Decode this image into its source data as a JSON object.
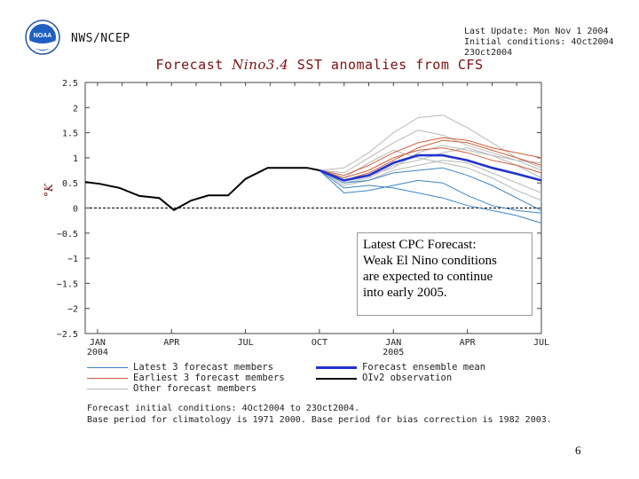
{
  "header": {
    "agency": "NWS/NCEP",
    "logo_text": "NOAA",
    "last_update": "Last Update: Mon Nov 1 2004",
    "initial_conditions": "Initial conditions: 4Oct2004 23Oct2004"
  },
  "callout": {
    "lines": [
      "Latest CPC Forecast:",
      "Weak El Nino conditions",
      "are expected to continue",
      "into early 2005."
    ]
  },
  "legend": {
    "latest": "Latest 3 forecast members",
    "earliest": "Earliest 3 forecast members",
    "other": "Other forecast members",
    "mean": "Forecast ensemble mean",
    "obs": "OIv2 observation"
  },
  "footer": {
    "line1": "Forecast initial conditions: 4Oct2004 to 23Oct2004.",
    "line2": "Base period for climatology is 1971 2000. Base period for bias correction is 1982 2003."
  },
  "slide_number": "6",
  "colors": {
    "latest": "#3b86c8",
    "earliest": "#d0603a",
    "other": "#b8b8b8",
    "mean": "#2233cc",
    "obs": "#000000",
    "title": "#7a1010"
  },
  "chart_data": {
    "type": "line",
    "title_prefix": "Forecast ",
    "title_italic": "Nino3.4",
    "title_suffix": " SST anomalies from CFS",
    "ylabel": "°K",
    "ylim": [
      -2.5,
      2.5
    ],
    "yticks": [
      -2.5,
      -2,
      -1.5,
      -1,
      -0.5,
      0,
      0.5,
      1,
      1.5,
      2,
      2.5
    ],
    "ytick_labels": [
      "−2.5",
      "−2",
      "−1.5",
      "−1",
      "−0.5",
      "0",
      "0.5",
      "1",
      "1.5",
      "2",
      "2.5"
    ],
    "xlim": [
      0,
      18.5
    ],
    "xticks": [
      {
        "x": 0.5,
        "label": "JAN",
        "sub": "2004"
      },
      {
        "x": 3.5,
        "label": "APR",
        "sub": ""
      },
      {
        "x": 6.5,
        "label": "JUL",
        "sub": ""
      },
      {
        "x": 9.5,
        "label": "OCT",
        "sub": ""
      },
      {
        "x": 12.5,
        "label": "JAN",
        "sub": "2005"
      },
      {
        "x": 15.5,
        "label": "APR",
        "sub": ""
      },
      {
        "x": 18.5,
        "label": "JUL",
        "sub": ""
      }
    ],
    "observation": {
      "x": [
        0,
        0.6,
        1.4,
        2.2,
        3.0,
        3.6,
        4.3,
        5.0,
        5.8,
        6.5,
        7.4,
        8.2,
        9.0,
        9.5
      ],
      "y": [
        0.52,
        0.48,
        0.4,
        0.24,
        0.2,
        -0.04,
        0.15,
        0.25,
        0.25,
        0.58,
        0.8,
        0.8,
        0.8,
        0.75
      ]
    },
    "ensemble_mean": {
      "x": [
        9.5,
        10.5,
        11.5,
        12.5,
        13.5,
        14.5,
        15.5,
        16.5,
        17.5,
        18.5
      ],
      "y": [
        0.75,
        0.55,
        0.65,
        0.9,
        1.05,
        1.05,
        0.95,
        0.8,
        0.68,
        0.55
      ]
    },
    "latest_members": [
      {
        "x": [
          9.5,
          10.5,
          11.5,
          12.5,
          13.5,
          14.5,
          15.5,
          16.5,
          17.5,
          18.5
        ],
        "y": [
          0.75,
          0.3,
          0.35,
          0.45,
          0.55,
          0.5,
          0.25,
          0.05,
          -0.05,
          -0.1
        ]
      },
      {
        "x": [
          9.5,
          10.5,
          11.5,
          12.5,
          13.5,
          14.5,
          15.5,
          16.5,
          17.5,
          18.5
        ],
        "y": [
          0.75,
          0.4,
          0.45,
          0.4,
          0.3,
          0.2,
          0.05,
          -0.05,
          -0.15,
          -0.3
        ]
      },
      {
        "x": [
          9.5,
          10.5,
          11.5,
          12.5,
          13.5,
          14.5,
          15.5,
          16.5,
          17.5,
          18.5
        ],
        "y": [
          0.75,
          0.5,
          0.55,
          0.7,
          0.75,
          0.8,
          0.65,
          0.45,
          0.2,
          -0.05
        ]
      }
    ],
    "earliest_members": [
      {
        "x": [
          9.5,
          10.5,
          11.5,
          12.5,
          13.5,
          14.5,
          15.5,
          16.5,
          17.5,
          18.5
        ],
        "y": [
          0.75,
          0.65,
          0.85,
          1.1,
          1.3,
          1.4,
          1.35,
          1.2,
          1.1,
          1.0
        ]
      },
      {
        "x": [
          9.5,
          10.5,
          11.5,
          12.5,
          13.5,
          14.5,
          15.5,
          16.5,
          17.5,
          18.5
        ],
        "y": [
          0.75,
          0.6,
          0.75,
          1.0,
          1.15,
          1.2,
          1.1,
          0.95,
          0.85,
          0.7
        ]
      },
      {
        "x": [
          9.5,
          10.5,
          11.5,
          12.5,
          13.5,
          14.5,
          15.5,
          16.5,
          17.5,
          18.5
        ],
        "y": [
          0.75,
          0.55,
          0.7,
          0.95,
          1.2,
          1.35,
          1.3,
          1.15,
          1.0,
          0.85
        ]
      }
    ],
    "other_members": [
      {
        "x": [
          9.5,
          10.5,
          11.5,
          12.5,
          13.5,
          14.5,
          15.5,
          16.5,
          17.5,
          18.5
        ],
        "y": [
          0.75,
          0.8,
          1.1,
          1.5,
          1.8,
          1.85,
          1.6,
          1.3,
          1.0,
          0.8
        ]
      },
      {
        "x": [
          9.5,
          10.5,
          11.5,
          12.5,
          13.5,
          14.5,
          15.5,
          16.5,
          17.5,
          18.5
        ],
        "y": [
          0.75,
          0.7,
          1.0,
          1.3,
          1.55,
          1.45,
          1.25,
          1.1,
          0.95,
          0.9
        ]
      },
      {
        "x": [
          9.5,
          10.5,
          11.5,
          12.5,
          13.5,
          14.5,
          15.5,
          16.5,
          17.5,
          18.5
        ],
        "y": [
          0.75,
          0.45,
          0.55,
          0.75,
          0.85,
          0.95,
          0.9,
          0.7,
          0.5,
          0.3
        ]
      },
      {
        "x": [
          9.5,
          10.5,
          11.5,
          12.5,
          13.5,
          14.5,
          15.5,
          16.5,
          17.5,
          18.5
        ],
        "y": [
          0.75,
          0.55,
          0.65,
          0.8,
          1.1,
          1.25,
          1.15,
          1.05,
          0.95,
          0.75
        ]
      },
      {
        "x": [
          9.5,
          10.5,
          11.5,
          12.5,
          13.5,
          14.5,
          15.5,
          16.5,
          17.5,
          18.5
        ],
        "y": [
          0.75,
          0.6,
          0.9,
          1.15,
          1.0,
          0.9,
          0.8,
          0.6,
          0.35,
          0.15
        ]
      },
      {
        "x": [
          9.5,
          10.5,
          11.5,
          12.5,
          13.5,
          14.5,
          15.5,
          16.5,
          17.5,
          18.5
        ],
        "y": [
          0.75,
          0.5,
          0.6,
          0.85,
          0.95,
          1.1,
          1.2,
          1.05,
          0.85,
          0.6
        ]
      }
    ]
  }
}
